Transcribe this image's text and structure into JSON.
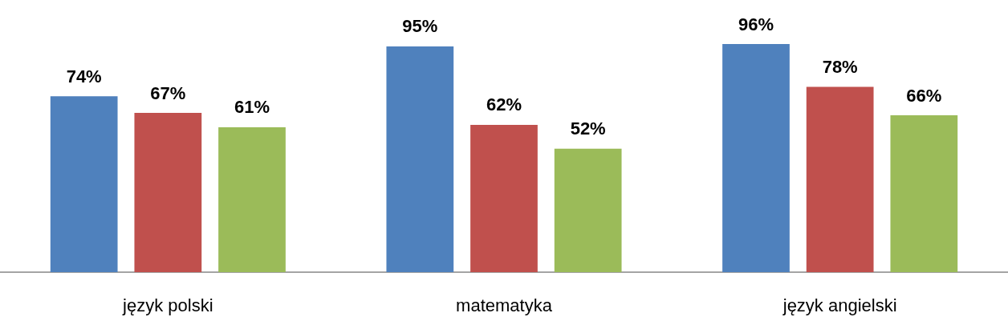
{
  "chart_data": {
    "type": "bar",
    "categories": [
      "język polski",
      "matematyka",
      "język angielski"
    ],
    "series": [
      {
        "color": "#4f81bd",
        "values": [
          74,
          95,
          96
        ],
        "value_labels": [
          "74%",
          "95%",
          "96%"
        ]
      },
      {
        "color": "#c0504d",
        "values": [
          67,
          62,
          78
        ],
        "value_labels": [
          "67%",
          "62%",
          "78%"
        ]
      },
      {
        "color": "#9bbb59",
        "values": [
          61,
          52,
          66
        ],
        "value_labels": [
          "61%",
          "52%",
          "66%"
        ]
      }
    ],
    "grid": false
  }
}
